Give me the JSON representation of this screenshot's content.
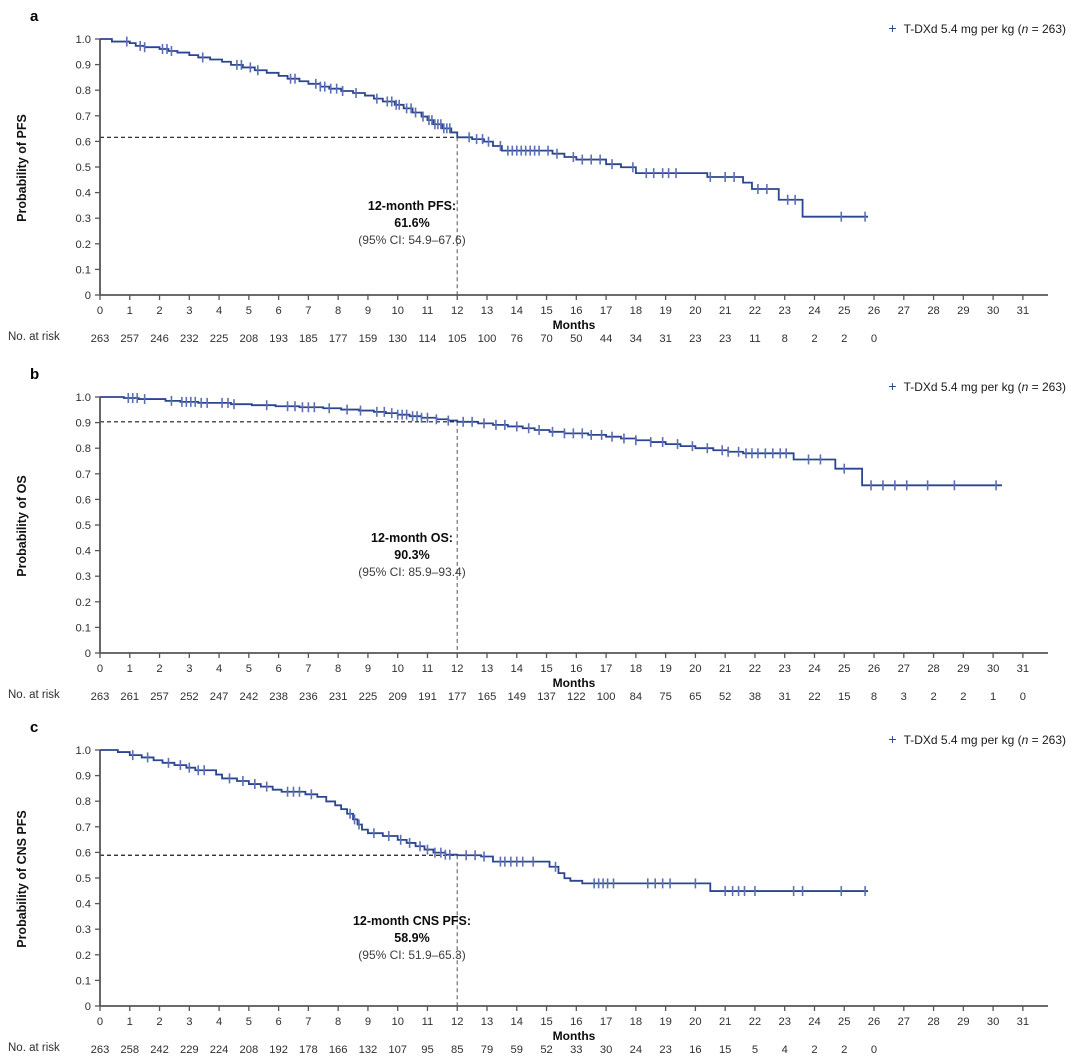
{
  "figure": {
    "months_label": "Months",
    "no_at_risk_label": "No. at risk",
    "x_tick_labels": [
      "0",
      "1",
      "2",
      "3",
      "4",
      "5",
      "6",
      "7",
      "8",
      "9",
      "10",
      "11",
      "12",
      "13",
      "14",
      "15",
      "16",
      "17",
      "18",
      "19",
      "20",
      "21",
      "22",
      "23",
      "24",
      "25",
      "26",
      "27",
      "28",
      "29",
      "30",
      "31"
    ],
    "y_tick_labels": [
      "1.0",
      "0.9",
      "0.8",
      "0.7",
      "0.6",
      "0.5",
      "0.4",
      "0.3",
      "0.2",
      "0.1",
      "0"
    ],
    "colors": {
      "curve": "#2c4590",
      "censor": "#5d70b4",
      "axis": "#55565a",
      "tick_text": "#303032",
      "dash_horizontal": "#1a1a1a",
      "dash_vertical": "#7c7c7e"
    },
    "legend": {
      "marker": "+",
      "pre": "T-DXd 5.4 mg per kg (",
      "n": "n",
      "post": " = 263)"
    }
  },
  "chart_data": [
    {
      "type": "km_step",
      "panel_letter": "a",
      "ylabel": "Probability of PFS",
      "xlabel": "Months",
      "legend_entry": "T-DXd 5.4 mg per kg (n = 263)",
      "ylim": [
        0,
        1.0
      ],
      "xlim": [
        0,
        31
      ],
      "annotation": {
        "line1": "12-month PFS:",
        "line2": "61.6%",
        "line3": "(95% CI: 54.9–67.6)"
      },
      "reference": {
        "x": 12,
        "y": 0.616
      },
      "at_risk": [
        263,
        257,
        246,
        232,
        225,
        208,
        193,
        185,
        177,
        159,
        130,
        114,
        105,
        100,
        76,
        70,
        50,
        44,
        34,
        31,
        23,
        23,
        11,
        8,
        2,
        2,
        0
      ],
      "steps": [
        [
          0,
          1.0
        ],
        [
          0.4,
          0.99
        ],
        [
          1.0,
          0.984
        ],
        [
          1.2,
          0.973
        ],
        [
          1.5,
          0.968
        ],
        [
          2.0,
          0.961
        ],
        [
          2.3,
          0.953
        ],
        [
          2.6,
          0.947
        ],
        [
          3.0,
          0.937
        ],
        [
          3.3,
          0.928
        ],
        [
          3.7,
          0.92
        ],
        [
          4.1,
          0.911
        ],
        [
          4.4,
          0.899
        ],
        [
          4.8,
          0.889
        ],
        [
          5.2,
          0.878
        ],
        [
          5.6,
          0.868
        ],
        [
          6.0,
          0.856
        ],
        [
          6.3,
          0.845
        ],
        [
          6.7,
          0.835
        ],
        [
          7.0,
          0.825
        ],
        [
          7.4,
          0.814
        ],
        [
          7.7,
          0.806
        ],
        [
          8.1,
          0.797
        ],
        [
          8.5,
          0.789
        ],
        [
          8.9,
          0.779
        ],
        [
          9.2,
          0.767
        ],
        [
          9.5,
          0.756
        ],
        [
          9.9,
          0.743
        ],
        [
          10.2,
          0.729
        ],
        [
          10.5,
          0.713
        ],
        [
          10.8,
          0.697
        ],
        [
          11.0,
          0.683
        ],
        [
          11.2,
          0.667
        ],
        [
          11.5,
          0.651
        ],
        [
          11.8,
          0.635
        ],
        [
          12.0,
          0.616
        ],
        [
          12.5,
          0.609
        ],
        [
          12.9,
          0.599
        ],
        [
          13.2,
          0.582
        ],
        [
          13.5,
          0.564
        ],
        [
          15.2,
          0.552
        ],
        [
          15.6,
          0.539
        ],
        [
          16.0,
          0.529
        ],
        [
          17.0,
          0.511
        ],
        [
          17.5,
          0.499
        ],
        [
          18.0,
          0.476
        ],
        [
          20.4,
          0.461
        ],
        [
          21.6,
          0.439
        ],
        [
          21.9,
          0.414
        ],
        [
          22.8,
          0.372
        ],
        [
          23.6,
          0.306
        ]
      ],
      "end_x": 25.8,
      "censors": [
        0.9,
        1.35,
        1.5,
        2.1,
        2.25,
        2.4,
        3.45,
        4.6,
        4.75,
        5.05,
        5.3,
        6.4,
        6.55,
        7.25,
        7.4,
        7.55,
        7.75,
        7.95,
        8.15,
        8.6,
        9.3,
        9.65,
        9.8,
        9.95,
        10.05,
        10.3,
        10.45,
        10.6,
        10.85,
        11.05,
        11.15,
        11.25,
        11.35,
        11.45,
        11.55,
        11.65,
        11.75,
        12.4,
        12.65,
        12.85,
        13.05,
        13.45,
        13.7,
        13.85,
        14.0,
        14.15,
        14.3,
        14.45,
        14.6,
        14.75,
        15.05,
        15.35,
        15.9,
        16.2,
        16.5,
        16.8,
        17.2,
        17.9,
        18.35,
        18.6,
        18.9,
        19.1,
        19.35,
        20.5,
        21.0,
        21.3,
        22.1,
        22.4,
        23.1,
        23.35,
        24.9,
        25.7
      ]
    },
    {
      "type": "km_step",
      "panel_letter": "b",
      "ylabel": "Probability of OS",
      "xlabel": "Months",
      "legend_entry": "T-DXd 5.4 mg per kg (n = 263)",
      "ylim": [
        0,
        1.0
      ],
      "xlim": [
        0,
        31
      ],
      "annotation": {
        "line1": "12-month OS:",
        "line2": "90.3%",
        "line3": "(95% CI: 85.9–93.4)"
      },
      "reference": {
        "x": 12,
        "y": 0.903
      },
      "at_risk": [
        263,
        261,
        257,
        252,
        247,
        242,
        238,
        236,
        231,
        225,
        209,
        191,
        177,
        165,
        149,
        137,
        122,
        100,
        84,
        75,
        65,
        52,
        38,
        31,
        22,
        15,
        8,
        3,
        2,
        2,
        1,
        0
      ],
      "steps": [
        [
          0,
          1.0
        ],
        [
          0.8,
          0.996
        ],
        [
          1.3,
          0.992
        ],
        [
          2.2,
          0.985
        ],
        [
          2.7,
          0.981
        ],
        [
          3.3,
          0.977
        ],
        [
          4.4,
          0.972
        ],
        [
          5.1,
          0.968
        ],
        [
          5.9,
          0.964
        ],
        [
          6.7,
          0.96
        ],
        [
          7.5,
          0.956
        ],
        [
          8.1,
          0.951
        ],
        [
          8.7,
          0.947
        ],
        [
          9.2,
          0.942
        ],
        [
          9.6,
          0.937
        ],
        [
          10.0,
          0.931
        ],
        [
          10.4,
          0.925
        ],
        [
          10.8,
          0.919
        ],
        [
          11.3,
          0.913
        ],
        [
          11.7,
          0.908
        ],
        [
          12.0,
          0.903
        ],
        [
          12.7,
          0.897
        ],
        [
          13.2,
          0.891
        ],
        [
          13.7,
          0.885
        ],
        [
          14.2,
          0.878
        ],
        [
          14.6,
          0.871
        ],
        [
          15.1,
          0.864
        ],
        [
          15.6,
          0.858
        ],
        [
          16.4,
          0.852
        ],
        [
          17.0,
          0.845
        ],
        [
          17.5,
          0.838
        ],
        [
          18.0,
          0.831
        ],
        [
          18.5,
          0.824
        ],
        [
          19.0,
          0.816
        ],
        [
          19.5,
          0.808
        ],
        [
          20.0,
          0.8
        ],
        [
          20.6,
          0.792
        ],
        [
          21.1,
          0.786
        ],
        [
          21.6,
          0.78
        ],
        [
          23.3,
          0.756
        ],
        [
          24.7,
          0.72
        ],
        [
          25.6,
          0.655
        ]
      ],
      "end_x": 30.3,
      "censors": [
        0.95,
        1.1,
        1.25,
        1.5,
        2.4,
        2.75,
        2.9,
        3.05,
        3.2,
        3.4,
        3.6,
        4.1,
        4.3,
        4.5,
        5.6,
        6.3,
        6.55,
        6.8,
        7.0,
        7.2,
        7.7,
        8.3,
        8.75,
        9.3,
        9.55,
        9.8,
        10.0,
        10.15,
        10.3,
        10.5,
        10.65,
        10.8,
        11.0,
        11.3,
        11.7,
        12.2,
        12.5,
        12.9,
        13.3,
        13.6,
        14.0,
        14.4,
        14.75,
        15.2,
        15.6,
        15.9,
        16.2,
        16.5,
        16.85,
        17.2,
        17.6,
        18.0,
        18.5,
        18.9,
        19.4,
        19.9,
        20.4,
        20.9,
        21.1,
        21.45,
        21.7,
        21.9,
        22.1,
        22.35,
        22.6,
        22.85,
        23.05,
        23.8,
        24.2,
        25.0,
        25.9,
        26.3,
        26.7,
        27.1,
        27.8,
        28.7,
        30.1
      ]
    },
    {
      "type": "km_step",
      "panel_letter": "c",
      "ylabel": "Probability of CNS PFS",
      "xlabel": "Months",
      "legend_entry": "T-DXd 5.4 mg per kg (n = 263)",
      "ylim": [
        0,
        1.0
      ],
      "xlim": [
        0,
        31
      ],
      "annotation": {
        "line1": "12-month CNS PFS:",
        "line2": "58.9%",
        "line3": "(95% CI: 51.9–65.3)"
      },
      "reference": {
        "x": 12,
        "y": 0.589
      },
      "at_risk": [
        263,
        258,
        242,
        229,
        224,
        208,
        192,
        178,
        166,
        132,
        107,
        95,
        85,
        79,
        59,
        52,
        33,
        30,
        24,
        23,
        16,
        15,
        5,
        4,
        2,
        2,
        0
      ],
      "steps": [
        [
          0,
          1.0
        ],
        [
          0.6,
          0.992
        ],
        [
          1.0,
          0.98
        ],
        [
          1.4,
          0.971
        ],
        [
          1.8,
          0.96
        ],
        [
          2.1,
          0.95
        ],
        [
          2.5,
          0.941
        ],
        [
          2.9,
          0.931
        ],
        [
          3.2,
          0.921
        ],
        [
          3.9,
          0.904
        ],
        [
          4.1,
          0.889
        ],
        [
          4.6,
          0.879
        ],
        [
          5.0,
          0.867
        ],
        [
          5.4,
          0.857
        ],
        [
          5.8,
          0.845
        ],
        [
          6.1,
          0.837
        ],
        [
          6.9,
          0.827
        ],
        [
          7.3,
          0.817
        ],
        [
          7.6,
          0.799
        ],
        [
          7.9,
          0.784
        ],
        [
          8.1,
          0.769
        ],
        [
          8.3,
          0.751
        ],
        [
          8.5,
          0.729
        ],
        [
          8.65,
          0.709
        ],
        [
          8.8,
          0.689
        ],
        [
          9.0,
          0.675
        ],
        [
          9.5,
          0.664
        ],
        [
          10.0,
          0.649
        ],
        [
          10.3,
          0.637
        ],
        [
          10.6,
          0.624
        ],
        [
          10.9,
          0.611
        ],
        [
          11.2,
          0.599
        ],
        [
          11.6,
          0.591
        ],
        [
          12.0,
          0.589
        ],
        [
          12.8,
          0.584
        ],
        [
          13.2,
          0.564
        ],
        [
          15.1,
          0.544
        ],
        [
          15.4,
          0.519
        ],
        [
          15.6,
          0.499
        ],
        [
          15.8,
          0.489
        ],
        [
          16.2,
          0.479
        ],
        [
          20.5,
          0.449
        ]
      ],
      "end_x": 25.8,
      "censors": [
        1.1,
        1.6,
        2.3,
        2.7,
        3.0,
        3.3,
        3.5,
        4.35,
        4.8,
        5.2,
        5.6,
        6.3,
        6.5,
        6.7,
        7.1,
        8.4,
        8.55,
        8.7,
        9.2,
        9.7,
        10.1,
        10.4,
        10.75,
        11.0,
        11.25,
        11.45,
        11.6,
        11.75,
        12.3,
        12.6,
        12.9,
        13.45,
        13.6,
        13.8,
        14.0,
        14.2,
        14.55,
        15.3,
        16.6,
        16.75,
        16.9,
        17.05,
        17.25,
        18.4,
        18.65,
        18.9,
        19.15,
        20.0,
        21.0,
        21.25,
        21.45,
        21.65,
        22.0,
        23.3,
        23.6,
        24.9,
        25.7
      ]
    }
  ]
}
